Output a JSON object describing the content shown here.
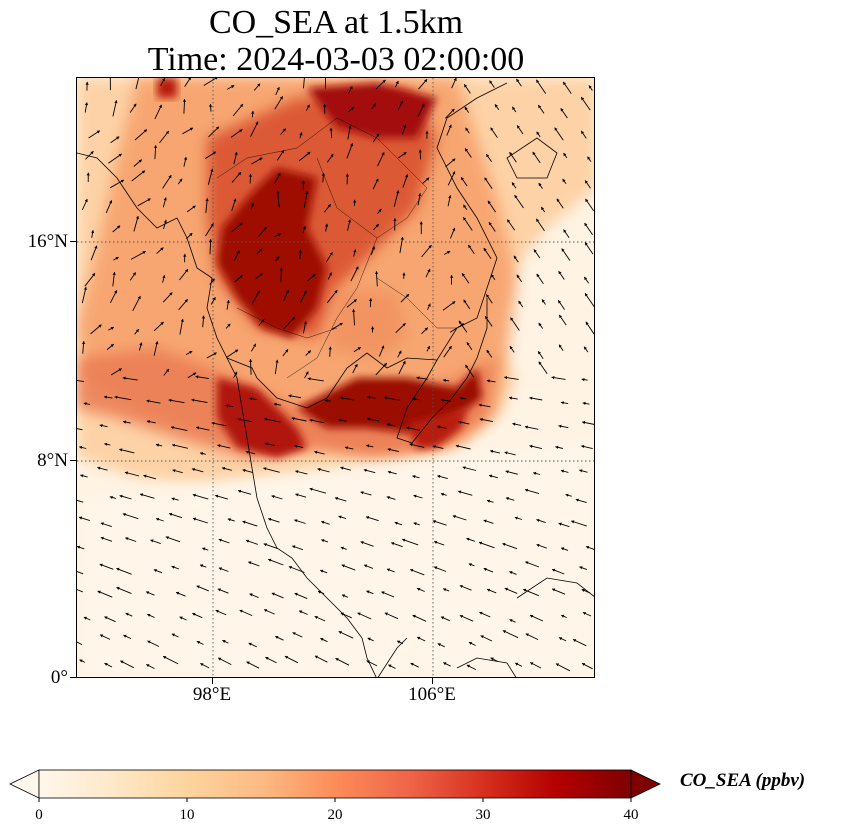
{
  "figure": {
    "title": "CO_SEA at 1.5km",
    "subtitle": "Time: 2024-03-03 02:00:00"
  },
  "map": {
    "variable": "CO_SEA",
    "level": "1.5km",
    "lat_labels": [
      "16°N",
      "8°N",
      "0°"
    ],
    "lon_labels": [
      "98°E",
      "106°E"
    ],
    "gridlines": "dotted",
    "colormap": "OrRd",
    "wind_vectors": true,
    "coastlines": true,
    "borders": true
  },
  "colorbar": {
    "label": "CO_SEA (ppbv)",
    "ticks": [
      "0",
      "10",
      "20",
      "30",
      "40"
    ],
    "range": [
      0,
      40
    ],
    "extend": "both",
    "colors": [
      "#fff7ec",
      "#fee8c8",
      "#fdd49e",
      "#fdbb84",
      "#fc8d59",
      "#ef6548",
      "#d7301f",
      "#b30000",
      "#7f0000"
    ]
  }
}
